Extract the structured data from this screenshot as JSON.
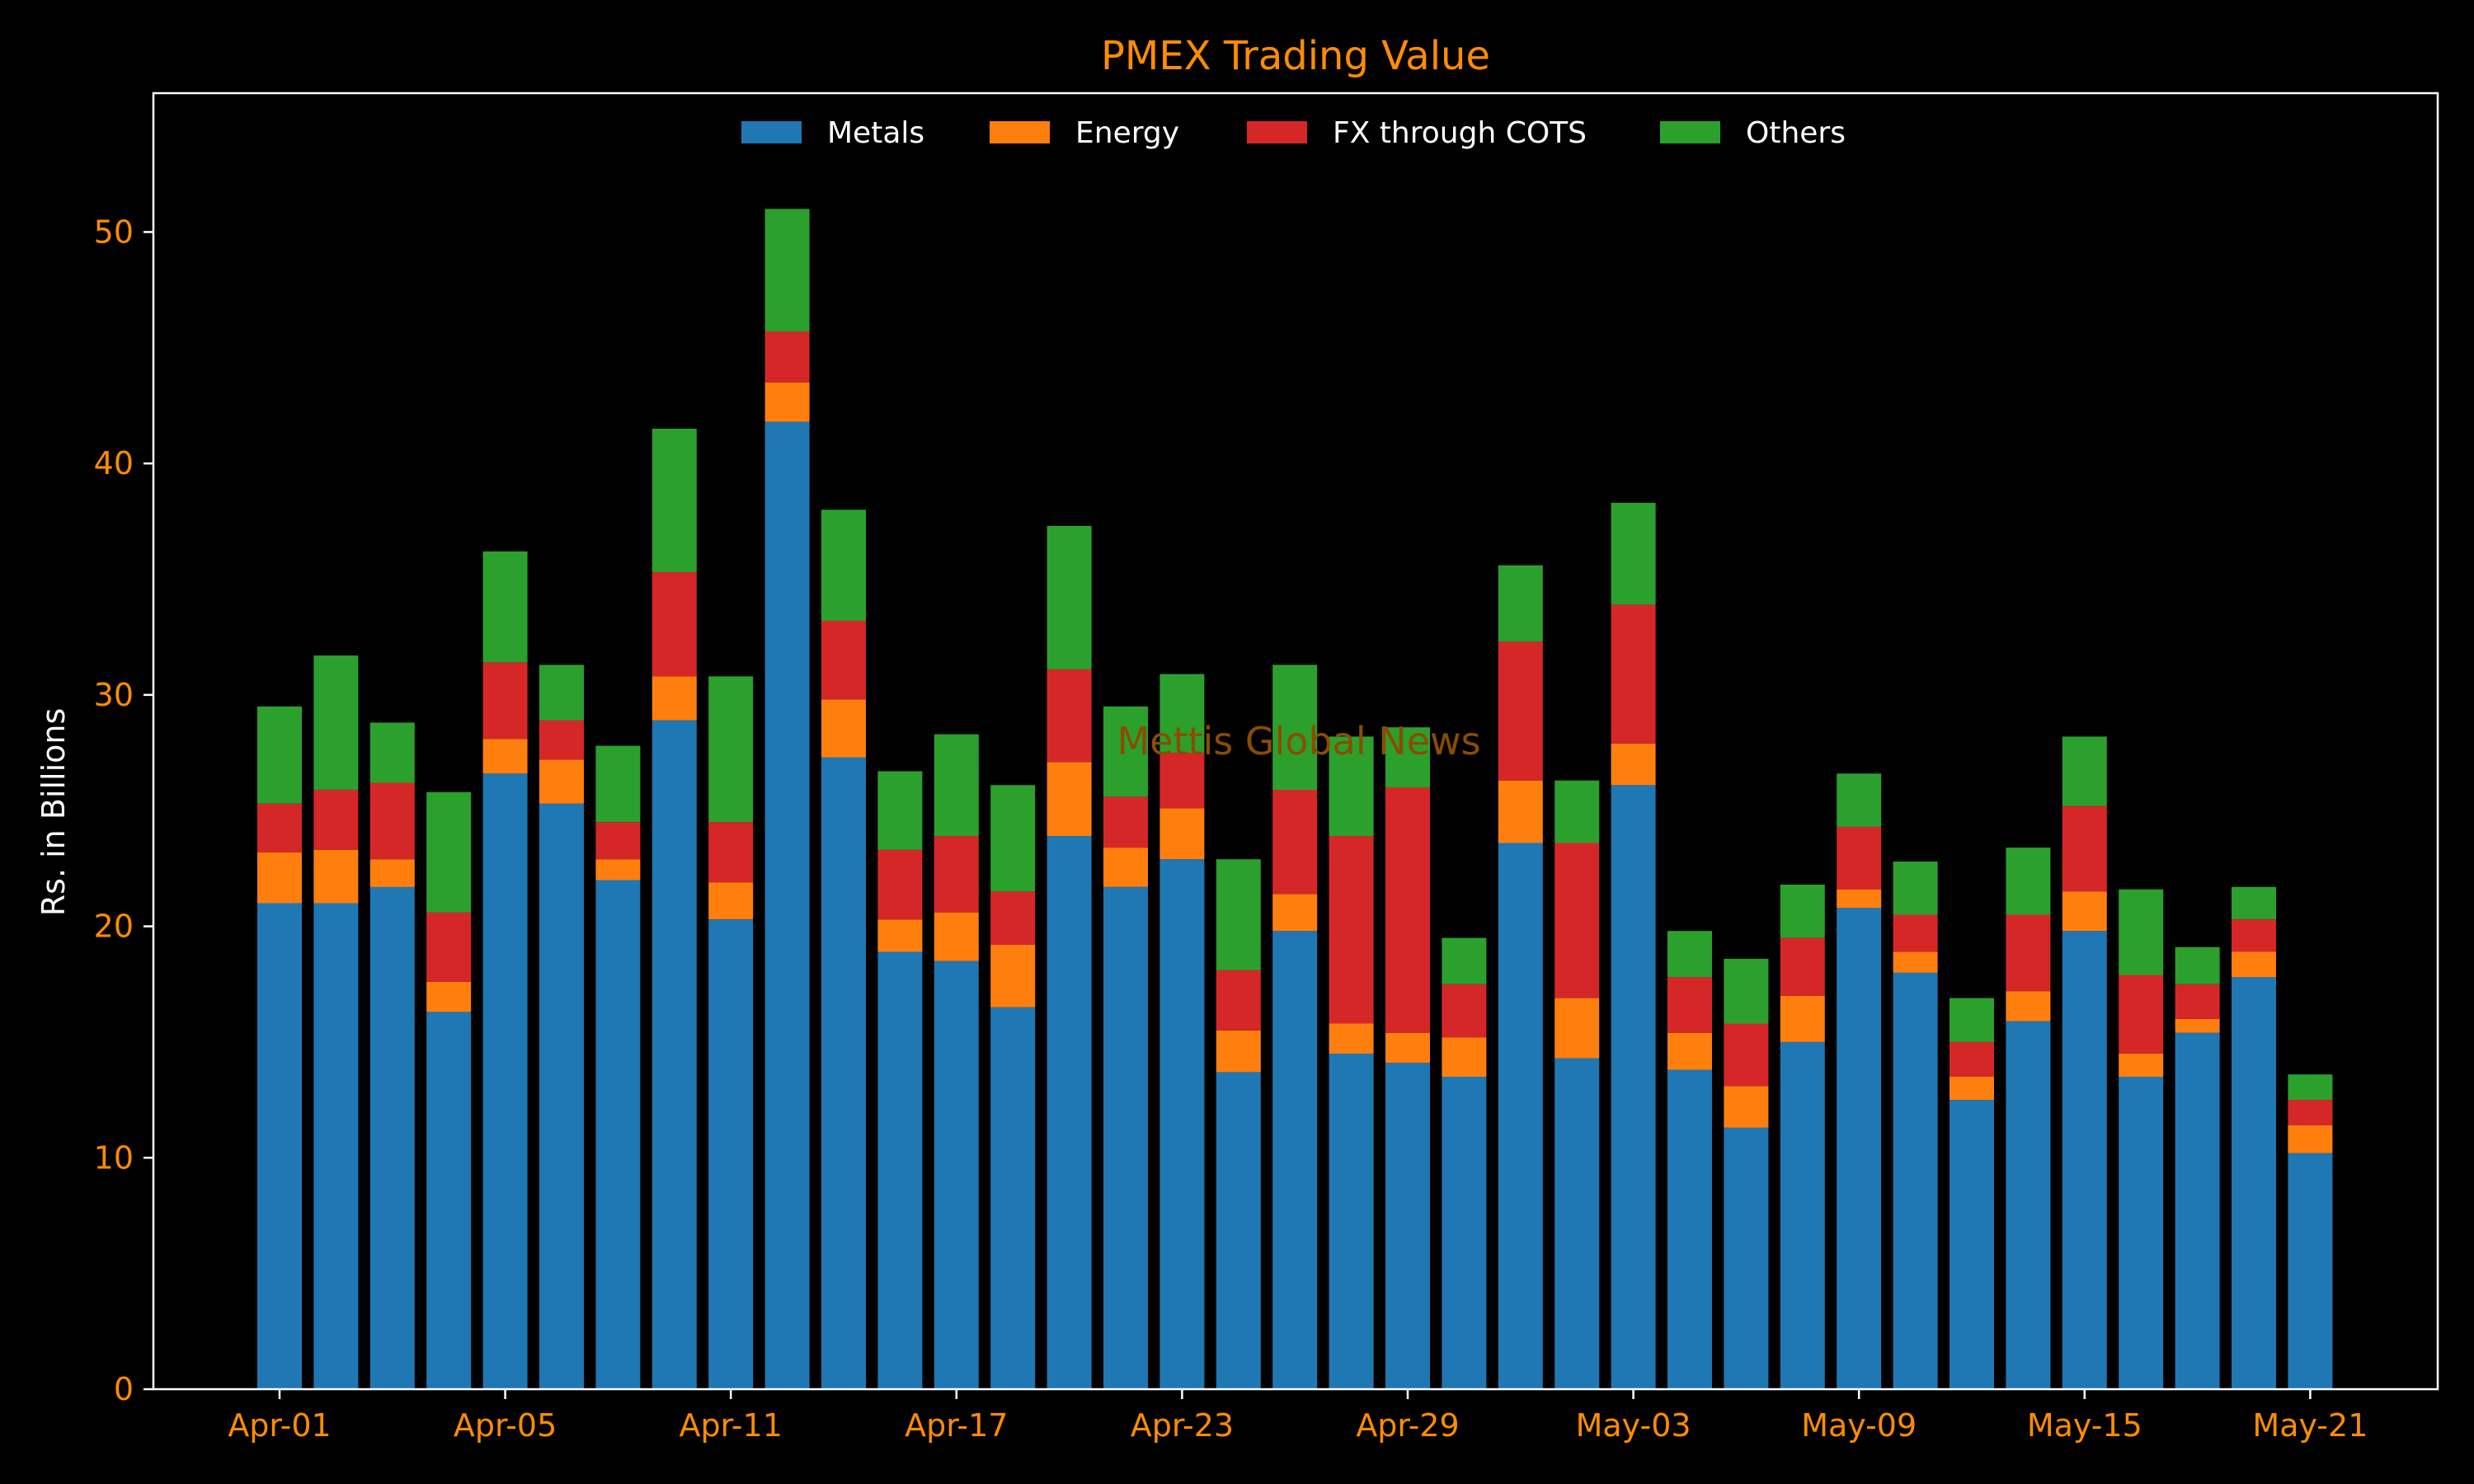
{
  "chart_data": {
    "type": "bar",
    "stacked": true,
    "title": "PMEX Trading Value",
    "xlabel": "",
    "ylabel": "Rs. in Billions",
    "ylim": [
      0,
      56
    ],
    "yticks": [
      0,
      10,
      20,
      30,
      40,
      50
    ],
    "xticks": [
      "Apr-01",
      "Apr-05",
      "Apr-11",
      "Apr-17",
      "Apr-23",
      "Apr-29",
      "May-03",
      "May-09",
      "May-15",
      "May-21"
    ],
    "xtick_indices": [
      0,
      4,
      8,
      12,
      16,
      20,
      24,
      28,
      32,
      36
    ],
    "legend_position": "top-center",
    "grid": false,
    "watermark": "Mettis Global News",
    "background": "#000000",
    "title_color": "#ff8c00",
    "tick_color": "#ff8c00",
    "series": [
      {
        "name": "Metals",
        "color": "#1f77b4",
        "values": [
          21.0,
          21.0,
          21.7,
          16.3,
          26.6,
          25.3,
          22.0,
          28.9,
          20.3,
          41.8,
          27.3,
          18.9,
          18.5,
          16.5,
          23.9,
          21.7,
          22.9,
          13.7,
          19.8,
          14.5,
          14.1,
          13.5,
          23.6,
          14.3,
          26.1,
          13.8,
          11.3,
          15.0,
          20.8,
          18.0,
          12.5,
          15.9,
          19.8,
          13.5,
          15.4,
          17.8,
          10.2
        ]
      },
      {
        "name": "Energy",
        "color": "#ff7f0e",
        "values": [
          2.2,
          2.3,
          1.2,
          1.3,
          1.5,
          1.9,
          0.9,
          1.9,
          1.6,
          1.7,
          2.5,
          1.4,
          2.1,
          2.7,
          3.2,
          1.7,
          2.2,
          1.8,
          1.6,
          1.3,
          1.3,
          1.7,
          2.7,
          2.6,
          1.8,
          1.6,
          1.8,
          2.0,
          0.8,
          0.9,
          1.0,
          1.3,
          1.7,
          1.0,
          0.6,
          1.1,
          1.2
        ]
      },
      {
        "name": "FX through COTS",
        "color": "#d62728",
        "values": [
          2.1,
          2.6,
          3.3,
          3.0,
          3.3,
          1.7,
          1.6,
          4.5,
          2.6,
          2.2,
          3.4,
          3.0,
          3.3,
          2.3,
          4.0,
          2.2,
          2.4,
          2.6,
          4.5,
          8.1,
          10.6,
          2.3,
          6.0,
          6.7,
          6.0,
          2.4,
          2.7,
          2.5,
          2.7,
          1.6,
          1.5,
          3.3,
          3.7,
          3.4,
          1.5,
          1.4,
          1.1
        ]
      },
      {
        "name": "Others",
        "color": "#2ca02c",
        "values": [
          4.2,
          5.8,
          2.6,
          5.2,
          4.8,
          2.4,
          3.3,
          6.2,
          6.3,
          5.3,
          4.8,
          3.4,
          4.4,
          4.6,
          6.2,
          3.9,
          3.4,
          4.8,
          5.4,
          4.3,
          2.6,
          2.0,
          3.3,
          2.7,
          4.4,
          2.0,
          2.8,
          2.3,
          2.3,
          2.3,
          1.9,
          2.9,
          3.0,
          3.7,
          1.6,
          1.4,
          1.1
        ]
      }
    ]
  }
}
